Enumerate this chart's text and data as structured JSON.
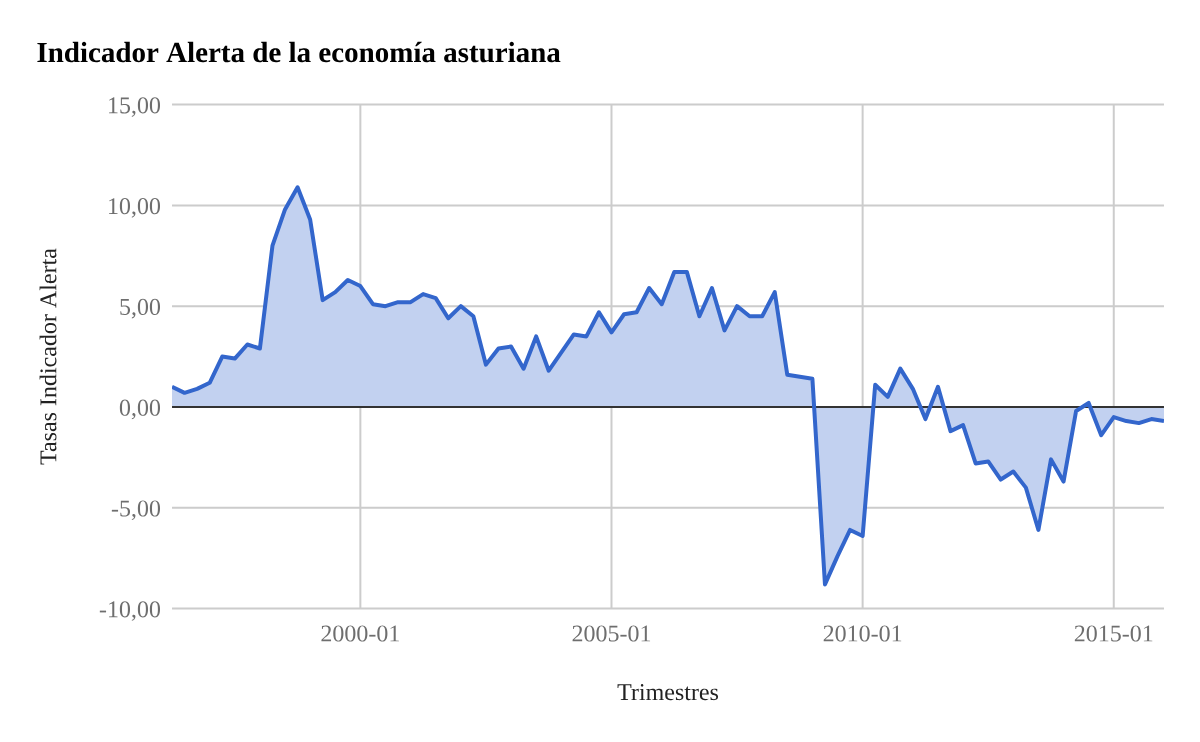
{
  "chart_data": {
    "type": "area",
    "title": "Indicador Alerta de la economía asturiana",
    "xlabel": "Trimestres",
    "ylabel": "Tasas Indicador Alerta",
    "x": [
      "1996-04",
      "1996-07",
      "1996-10",
      "1997-01",
      "1997-04",
      "1997-07",
      "1997-10",
      "1998-01",
      "1998-04",
      "1998-07",
      "1998-10",
      "1999-01",
      "1999-04",
      "1999-07",
      "1999-10",
      "2000-01",
      "2000-04",
      "2000-07",
      "2000-10",
      "2001-01",
      "2001-04",
      "2001-07",
      "2001-10",
      "2002-01",
      "2002-04",
      "2002-07",
      "2002-10",
      "2003-01",
      "2003-04",
      "2003-07",
      "2003-10",
      "2004-01",
      "2004-04",
      "2004-07",
      "2004-10",
      "2005-01",
      "2005-04",
      "2005-07",
      "2005-10",
      "2006-01",
      "2006-04",
      "2006-07",
      "2006-10",
      "2007-01",
      "2007-04",
      "2007-07",
      "2007-10",
      "2008-01",
      "2008-04",
      "2008-07",
      "2008-10",
      "2009-01",
      "2009-04",
      "2009-07",
      "2009-10",
      "2010-01",
      "2010-04",
      "2010-07",
      "2010-10",
      "2011-01",
      "2011-04",
      "2011-07",
      "2011-10",
      "2012-01",
      "2012-04",
      "2012-07",
      "2012-10",
      "2013-01",
      "2013-04",
      "2013-07",
      "2013-10",
      "2014-01",
      "2014-04",
      "2014-07",
      "2014-10",
      "2015-01",
      "2015-04",
      "2015-07",
      "2015-10",
      "2016-01"
    ],
    "values": [
      1.0,
      0.7,
      0.9,
      1.2,
      2.5,
      2.4,
      3.1,
      2.9,
      8.0,
      9.8,
      10.9,
      9.3,
      5.3,
      5.7,
      6.3,
      6.0,
      5.1,
      5.0,
      5.2,
      5.2,
      5.6,
      5.4,
      4.4,
      5.0,
      4.5,
      2.1,
      2.9,
      3.0,
      1.9,
      3.5,
      1.8,
      2.7,
      3.6,
      3.5,
      4.7,
      3.7,
      4.6,
      4.7,
      5.9,
      5.1,
      6.7,
      6.7,
      4.5,
      5.9,
      3.8,
      5.0,
      4.5,
      4.5,
      5.7,
      1.6,
      1.5,
      1.4,
      -8.8,
      -7.4,
      -6.1,
      -6.4,
      1.1,
      0.5,
      1.9,
      0.9,
      -0.6,
      1.0,
      -1.2,
      -0.9,
      -2.8,
      -2.7,
      -3.6,
      -3.2,
      -4.0,
      -6.1,
      -2.6,
      -3.7,
      -0.2,
      0.2,
      -1.4,
      -0.5,
      -0.7,
      -0.8,
      -0.6,
      -0.7
    ],
    "color": "#3366cc",
    "xlim": [
      "1996-04",
      "2016-01"
    ],
    "xticks": [
      "2000-01",
      "2005-01",
      "2010-01",
      "2015-01"
    ],
    "ylim": [
      -10,
      15
    ],
    "yticks": [
      {
        "value": -10,
        "label": "-10,00"
      },
      {
        "value": -5,
        "label": "-5,00"
      },
      {
        "value": 0,
        "label": "0,00"
      },
      {
        "value": 5,
        "label": "5,00"
      },
      {
        "value": 10,
        "label": "10,00"
      },
      {
        "value": 15,
        "label": "15,00"
      }
    ],
    "grid": true,
    "ref_lines": [
      {
        "axis": "y",
        "value": 0,
        "color": "#333333"
      }
    ]
  }
}
